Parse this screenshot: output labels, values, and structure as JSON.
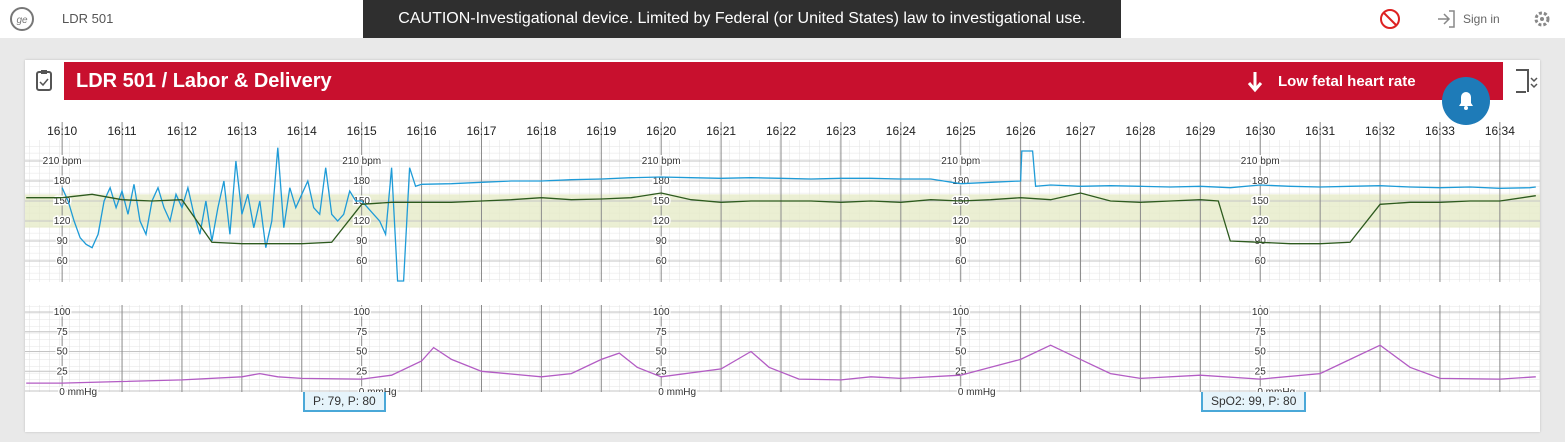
{
  "header": {
    "room": "LDR 501",
    "caution": "CAUTION-Investigational device. Limited by Federal (or United States) law to investigational use.",
    "sign_in": "Sign in"
  },
  "panel": {
    "title": "LDR 501 / Labor & Delivery",
    "alert": "Low fetal heart rate",
    "labels": [
      "P: 79, P: 80",
      "SpO2: 99, P: 80"
    ]
  },
  "chart_data": [
    {
      "type": "line",
      "xlim": [
        -0.62,
        24.67
      ],
      "xticks": [
        {
          "value": 0,
          "label": "16:10"
        },
        {
          "value": 1,
          "label": "16:11"
        },
        {
          "value": 2,
          "label": "16:12"
        },
        {
          "value": 3,
          "label": "16:13"
        },
        {
          "value": 4,
          "label": "16:14"
        },
        {
          "value": 5,
          "label": "16:15"
        },
        {
          "value": 6,
          "label": "16:16"
        },
        {
          "value": 7,
          "label": "16:17"
        },
        {
          "value": 8,
          "label": "16:18"
        },
        {
          "value": 9,
          "label": "16:19"
        },
        {
          "value": 10,
          "label": "16:20"
        },
        {
          "value": 11,
          "label": "16:21"
        },
        {
          "value": 12,
          "label": "16:22"
        },
        {
          "value": 13,
          "label": "16:23"
        },
        {
          "value": 14,
          "label": "16:24"
        },
        {
          "value": 15,
          "label": "16:25"
        },
        {
          "value": 16,
          "label": "16:26"
        },
        {
          "value": 17,
          "label": "16:27"
        },
        {
          "value": 18,
          "label": "16:28"
        },
        {
          "value": 19,
          "label": "16:29"
        },
        {
          "value": 20,
          "label": "16:30"
        },
        {
          "value": 21,
          "label": "16:31"
        },
        {
          "value": 22,
          "label": "16:32"
        },
        {
          "value": 23,
          "label": "16:33"
        },
        {
          "value": 24,
          "label": "16:34"
        }
      ],
      "ylim": [
        30,
        240
      ],
      "yticks": [
        {
          "value": 210,
          "label": "210 bpm"
        },
        180,
        150,
        120,
        90,
        60
      ],
      "band": [
        110,
        160
      ],
      "band_color": "#e6ebc8",
      "series": [
        {
          "color": "#1e9bd7",
          "x": [
            0,
            0.1,
            0.2,
            0.3,
            0.4,
            0.5,
            0.6,
            0.7,
            0.8,
            0.9,
            1.0,
            1.1,
            1.2,
            1.3,
            1.4,
            1.5,
            1.6,
            1.7,
            1.8,
            1.9,
            2.0,
            2.1,
            2.2,
            2.3,
            2.4,
            2.5,
            2.6,
            2.7,
            2.8,
            2.9,
            3.0,
            3.1,
            3.2,
            3.3,
            3.4,
            3.5,
            3.6,
            3.7,
            3.8,
            3.9,
            4.0,
            4.1,
            4.2,
            4.3,
            4.4,
            4.5,
            4.6,
            4.7,
            4.8,
            4.9,
            5.0,
            5.1,
            5.2,
            5.3,
            5.4,
            5.5,
            5.6,
            5.7,
            5.8,
            5.9,
            6.0,
            6.5,
            7,
            7.5,
            8,
            8.5,
            9,
            9.5,
            10,
            10.5,
            11,
            11.5,
            12,
            12.5,
            13,
            13.5,
            14,
            14.5,
            15,
            15.5,
            16,
            16.02,
            16.2,
            16.25,
            16.5,
            17,
            17.5,
            18,
            18.5,
            19,
            19.5,
            20,
            20.5,
            21,
            21.5,
            22,
            22.5,
            23,
            23.5,
            24,
            24.5,
            24.6
          ],
          "values": [
            170,
            150,
            120,
            95,
            85,
            80,
            100,
            150,
            170,
            140,
            165,
            130,
            175,
            120,
            100,
            150,
            170,
            140,
            120,
            160,
            140,
            170,
            130,
            100,
            150,
            90,
            140,
            180,
            100,
            210,
            130,
            160,
            110,
            150,
            80,
            120,
            230,
            110,
            170,
            140,
            160,
            180,
            140,
            130,
            200,
            130,
            120,
            130,
            165,
            150,
            150,
            140,
            130,
            120,
            100,
            200,
            30,
            30,
            200,
            172,
            175,
            176,
            178,
            180,
            180,
            182,
            183,
            185,
            186,
            185,
            184,
            185,
            184,
            183,
            184,
            184,
            183,
            183,
            176,
            178,
            180,
            225,
            225,
            172,
            174,
            172,
            173,
            172,
            171,
            172,
            170,
            174,
            172,
            171,
            172,
            173,
            171,
            170,
            171,
            169,
            170,
            171
          ]
        },
        {
          "color": "#2d5a1e",
          "x": [
            -0.6,
            0,
            0.5,
            1,
            1.5,
            2,
            2.5,
            3,
            3.5,
            4,
            4.5,
            5,
            5.5,
            6,
            6.5,
            7,
            7.5,
            8,
            8.5,
            9,
            9.5,
            10,
            10.5,
            11,
            11.5,
            12,
            12.5,
            13,
            13.5,
            14,
            14.5,
            15,
            15.5,
            16,
            16.5,
            17,
            17.5,
            18,
            18.5,
            19,
            19.3,
            19.5,
            20,
            20.5,
            21,
            21.5,
            22,
            22.5,
            23,
            23.5,
            24,
            24.6
          ],
          "values": [
            155,
            155,
            160,
            152,
            150,
            152,
            88,
            86,
            86,
            86,
            88,
            145,
            148,
            148,
            148,
            150,
            152,
            155,
            152,
            153,
            155,
            162,
            152,
            148,
            150,
            150,
            150,
            148,
            150,
            148,
            152,
            150,
            152,
            155,
            152,
            162,
            150,
            148,
            150,
            152,
            150,
            90,
            88,
            86,
            86,
            88,
            145,
            148,
            148,
            150,
            150,
            158
          ]
        }
      ]
    },
    {
      "type": "line",
      "xlim": [
        -0.62,
        24.67
      ],
      "ylim": [
        0,
        100
      ],
      "yticks": [
        100,
        75,
        50,
        25,
        {
          "value": 0,
          "label": "0 mmHg"
        }
      ],
      "series": [
        {
          "color": "#b35cc4",
          "x": [
            -0.6,
            0,
            1,
            2,
            3,
            3.3,
            3.6,
            4,
            5,
            5.5,
            6,
            6.2,
            6.5,
            7,
            8,
            8.5,
            9,
            9.3,
            9.6,
            10,
            11,
            11.5,
            11.8,
            12.3,
            13,
            13.5,
            14,
            15,
            15.5,
            16,
            16.5,
            17,
            17.5,
            18,
            19,
            20,
            21,
            21.5,
            22,
            22.5,
            23,
            24,
            24.6
          ],
          "values": [
            10,
            10,
            12,
            14,
            18,
            22,
            18,
            16,
            15,
            20,
            38,
            55,
            40,
            25,
            18,
            22,
            40,
            48,
            30,
            18,
            28,
            50,
            30,
            15,
            14,
            18,
            16,
            20,
            30,
            40,
            58,
            40,
            22,
            16,
            20,
            15,
            22,
            40,
            58,
            30,
            16,
            15,
            18
          ]
        }
      ]
    }
  ]
}
